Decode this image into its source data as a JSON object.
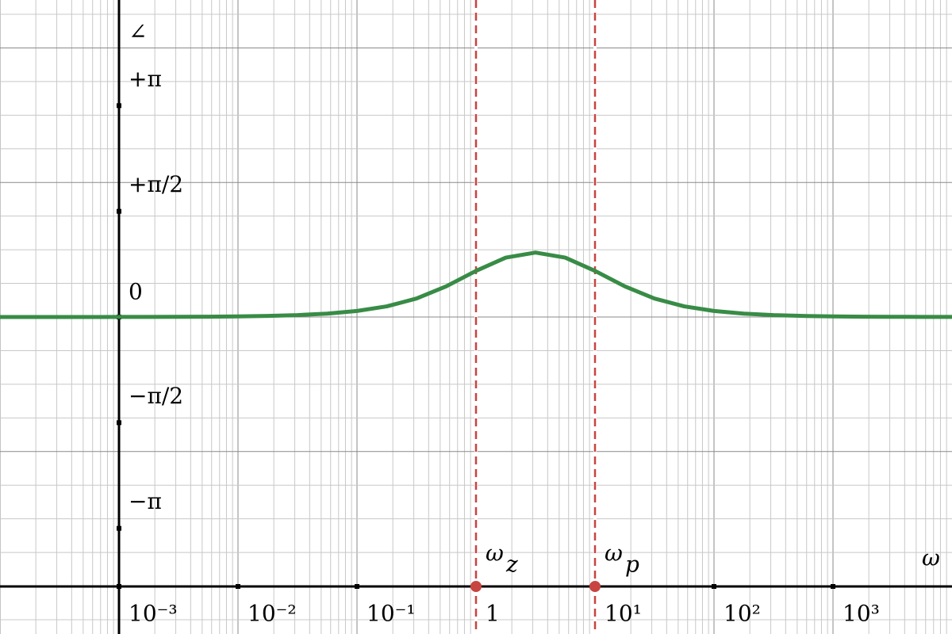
{
  "chart_data": {
    "type": "line",
    "x_label": "ω",
    "y_label": "∠",
    "x": [
      0.0001,
      0.000178,
      0.000316,
      0.000562,
      0.001,
      0.00178,
      0.00316,
      0.00562,
      0.01,
      0.0178,
      0.0316,
      0.0562,
      0.1,
      0.178,
      0.316,
      0.562,
      1,
      1.78,
      3.16,
      5.62,
      10,
      17.8,
      31.6,
      56.2,
      100,
      178,
      316,
      562,
      1000,
      1780,
      3160,
      5620,
      10000
    ],
    "series": [
      {
        "color": "#388c46",
        "values": [
          0.0001,
          0.0002,
          0.0003,
          0.0005,
          0.0009,
          0.0016,
          0.0028,
          0.0051,
          0.009,
          0.016,
          0.0284,
          0.0506,
          0.0897,
          0.1582,
          0.2747,
          0.456,
          0.6857,
          0.8824,
          0.9582,
          0.8826,
          0.6857,
          0.456,
          0.2747,
          0.1582,
          0.0897,
          0.0506,
          0.0284,
          0.016,
          0.009,
          0.0051,
          0.0028,
          0.0016,
          0.0009
        ]
      }
    ],
    "markers": [
      {
        "symbol": "ω",
        "subscript": "z",
        "x": 1,
        "color": "#c74440"
      },
      {
        "symbol": "ω",
        "subscript": "p",
        "x": 10,
        "color": "#c74440"
      }
    ],
    "xlim": [
      0.0001,
      10000
    ],
    "log_x": true,
    "xticks": [
      {
        "value": 0.001,
        "label": "10⁻³"
      },
      {
        "value": 0.01,
        "label": "10⁻²"
      },
      {
        "value": 0.1,
        "label": "10⁻¹"
      },
      1,
      {
        "value": 10,
        "label": "10¹"
      },
      {
        "value": 100,
        "label": "10²"
      },
      {
        "value": 1000,
        "label": "10³"
      }
    ],
    "ylim": [
      -4.712,
      4.712
    ],
    "yticks": [
      {
        "value": 3.14159,
        "label": "+π"
      },
      {
        "value": 1.5708,
        "label": "+π/2"
      },
      0,
      {
        "value": -1.5708,
        "label": "−π/2"
      },
      {
        "value": -3.14159,
        "label": "−π"
      }
    ],
    "grid": true
  }
}
